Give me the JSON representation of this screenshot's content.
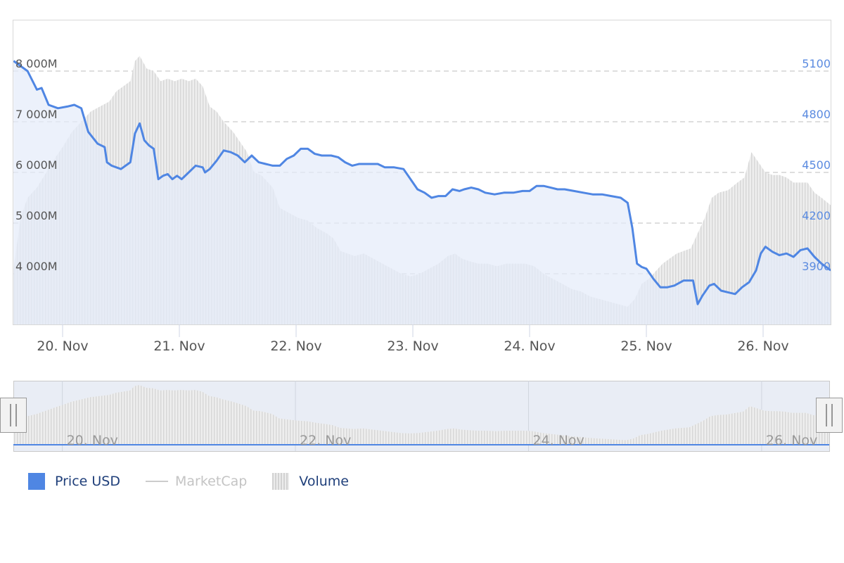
{
  "chart_data": {
    "type": "line",
    "x_ticks": [
      "20. Nov",
      "21. Nov",
      "22. Nov",
      "23. Nov",
      "24. Nov",
      "25. Nov",
      "26. Nov"
    ],
    "x_range_days": [
      19.58,
      26.58
    ],
    "y_left": {
      "ticks": [
        "4 000M",
        "5 000M",
        "6 000M",
        "7 000M",
        "8 000M"
      ],
      "tick_values": [
        4000,
        5000,
        6000,
        7000,
        8000
      ],
      "range": [
        3000,
        9000
      ]
    },
    "y_right": {
      "ticks": [
        "3900",
        "4200",
        "4500",
        "4800",
        "5100"
      ],
      "tick_values": [
        3900,
        4200,
        4500,
        4800,
        5100
      ],
      "range": [
        3600,
        5400
      ]
    },
    "grid": true,
    "legend_position": "bottom-left",
    "colors": {
      "price": "#4f86e3",
      "price_fill": "#e4ebf9",
      "marketcap": "#cccccc",
      "volume": "#e7e7e7",
      "volume_bar": "#d4d4d4"
    },
    "series": [
      {
        "name": "Price USD",
        "axis": "right",
        "type": "area",
        "points": [
          [
            19.58,
            5160
          ],
          [
            19.62,
            5140
          ],
          [
            19.7,
            5100
          ],
          [
            19.78,
            4990
          ],
          [
            19.82,
            5000
          ],
          [
            19.88,
            4900
          ],
          [
            19.96,
            4880
          ],
          [
            20.04,
            4890
          ],
          [
            20.1,
            4900
          ],
          [
            20.16,
            4880
          ],
          [
            20.22,
            4740
          ],
          [
            20.3,
            4670
          ],
          [
            20.36,
            4650
          ],
          [
            20.38,
            4560
          ],
          [
            20.42,
            4540
          ],
          [
            20.46,
            4530
          ],
          [
            20.5,
            4520
          ],
          [
            20.54,
            4540
          ],
          [
            20.58,
            4560
          ],
          [
            20.62,
            4730
          ],
          [
            20.66,
            4790
          ],
          [
            20.7,
            4690
          ],
          [
            20.74,
            4660
          ],
          [
            20.78,
            4640
          ],
          [
            20.82,
            4460
          ],
          [
            20.86,
            4480
          ],
          [
            20.9,
            4490
          ],
          [
            20.94,
            4460
          ],
          [
            20.98,
            4480
          ],
          [
            21.02,
            4460
          ],
          [
            21.08,
            4500
          ],
          [
            21.14,
            4540
          ],
          [
            21.2,
            4530
          ],
          [
            21.22,
            4500
          ],
          [
            21.26,
            4520
          ],
          [
            21.32,
            4570
          ],
          [
            21.38,
            4630
          ],
          [
            21.44,
            4620
          ],
          [
            21.5,
            4600
          ],
          [
            21.56,
            4560
          ],
          [
            21.62,
            4600
          ],
          [
            21.68,
            4560
          ],
          [
            21.74,
            4550
          ],
          [
            21.8,
            4540
          ],
          [
            21.86,
            4540
          ],
          [
            21.92,
            4580
          ],
          [
            21.98,
            4600
          ],
          [
            22.04,
            4640
          ],
          [
            22.1,
            4640
          ],
          [
            22.16,
            4610
          ],
          [
            22.22,
            4600
          ],
          [
            22.3,
            4600
          ],
          [
            22.36,
            4590
          ],
          [
            22.42,
            4560
          ],
          [
            22.48,
            4540
          ],
          [
            22.54,
            4550
          ],
          [
            22.62,
            4550
          ],
          [
            22.7,
            4550
          ],
          [
            22.76,
            4530
          ],
          [
            22.84,
            4530
          ],
          [
            22.92,
            4520
          ],
          [
            22.98,
            4460
          ],
          [
            23.04,
            4400
          ],
          [
            23.1,
            4380
          ],
          [
            23.16,
            4350
          ],
          [
            23.22,
            4360
          ],
          [
            23.28,
            4360
          ],
          [
            23.34,
            4400
          ],
          [
            23.4,
            4390
          ],
          [
            23.44,
            4400
          ],
          [
            23.5,
            4410
          ],
          [
            23.56,
            4400
          ],
          [
            23.62,
            4380
          ],
          [
            23.7,
            4370
          ],
          [
            23.78,
            4380
          ],
          [
            23.86,
            4380
          ],
          [
            23.94,
            4390
          ],
          [
            24.0,
            4390
          ],
          [
            24.06,
            4420
          ],
          [
            24.12,
            4420
          ],
          [
            24.18,
            4410
          ],
          [
            24.24,
            4400
          ],
          [
            24.3,
            4400
          ],
          [
            24.38,
            4390
          ],
          [
            24.46,
            4380
          ],
          [
            24.54,
            4370
          ],
          [
            24.62,
            4370
          ],
          [
            24.7,
            4360
          ],
          [
            24.78,
            4350
          ],
          [
            24.84,
            4320
          ],
          [
            24.88,
            4170
          ],
          [
            24.92,
            3960
          ],
          [
            24.96,
            3940
          ],
          [
            25.0,
            3930
          ],
          [
            25.06,
            3870
          ],
          [
            25.12,
            3820
          ],
          [
            25.18,
            3820
          ],
          [
            25.24,
            3830
          ],
          [
            25.32,
            3860
          ],
          [
            25.4,
            3860
          ],
          [
            25.44,
            3720
          ],
          [
            25.48,
            3770
          ],
          [
            25.54,
            3830
          ],
          [
            25.58,
            3840
          ],
          [
            25.64,
            3800
          ],
          [
            25.7,
            3790
          ],
          [
            25.76,
            3780
          ],
          [
            25.82,
            3820
          ],
          [
            25.88,
            3850
          ],
          [
            25.94,
            3920
          ],
          [
            25.98,
            4020
          ],
          [
            26.02,
            4060
          ],
          [
            26.08,
            4030
          ],
          [
            26.14,
            4010
          ],
          [
            26.2,
            4020
          ],
          [
            26.26,
            4000
          ],
          [
            26.32,
            4040
          ],
          [
            26.38,
            4050
          ],
          [
            26.44,
            4000
          ],
          [
            26.5,
            3960
          ],
          [
            26.58,
            3920
          ]
        ]
      },
      {
        "name": "MarketCap",
        "axis": "left",
        "type": "line",
        "hidden": true,
        "points": []
      },
      {
        "name": "Volume",
        "axis": "left",
        "type": "area",
        "points": [
          [
            19.58,
            4100
          ],
          [
            19.64,
            5100
          ],
          [
            19.7,
            5500
          ],
          [
            19.78,
            5700
          ],
          [
            19.86,
            6000
          ],
          [
            19.94,
            6300
          ],
          [
            20.0,
            6500
          ],
          [
            20.08,
            6800
          ],
          [
            20.16,
            7000
          ],
          [
            20.24,
            7200
          ],
          [
            20.32,
            7300
          ],
          [
            20.4,
            7400
          ],
          [
            20.46,
            7600
          ],
          [
            20.52,
            7700
          ],
          [
            20.58,
            7800
          ],
          [
            20.62,
            8200
          ],
          [
            20.66,
            8300
          ],
          [
            20.72,
            8050
          ],
          [
            20.78,
            8000
          ],
          [
            20.84,
            7800
          ],
          [
            20.9,
            7850
          ],
          [
            20.96,
            7800
          ],
          [
            21.02,
            7850
          ],
          [
            21.08,
            7800
          ],
          [
            21.14,
            7850
          ],
          [
            21.2,
            7700
          ],
          [
            21.26,
            7300
          ],
          [
            21.32,
            7200
          ],
          [
            21.38,
            7000
          ],
          [
            21.46,
            6800
          ],
          [
            21.52,
            6600
          ],
          [
            21.58,
            6400
          ],
          [
            21.64,
            6000
          ],
          [
            21.7,
            5950
          ],
          [
            21.76,
            5800
          ],
          [
            21.8,
            5700
          ],
          [
            21.86,
            5300
          ],
          [
            21.94,
            5200
          ],
          [
            22.02,
            5100
          ],
          [
            22.1,
            5050
          ],
          [
            22.18,
            4900
          ],
          [
            22.26,
            4800
          ],
          [
            22.32,
            4700
          ],
          [
            22.38,
            4450
          ],
          [
            22.44,
            4400
          ],
          [
            22.5,
            4350
          ],
          [
            22.58,
            4400
          ],
          [
            22.66,
            4300
          ],
          [
            22.74,
            4200
          ],
          [
            22.82,
            4100
          ],
          [
            22.9,
            4000
          ],
          [
            22.98,
            3950
          ],
          [
            23.06,
            4000
          ],
          [
            23.14,
            4100
          ],
          [
            23.22,
            4200
          ],
          [
            23.3,
            4350
          ],
          [
            23.36,
            4400
          ],
          [
            23.42,
            4300
          ],
          [
            23.48,
            4250
          ],
          [
            23.56,
            4200
          ],
          [
            23.64,
            4200
          ],
          [
            23.72,
            4150
          ],
          [
            23.8,
            4200
          ],
          [
            23.88,
            4200
          ],
          [
            23.96,
            4200
          ],
          [
            24.04,
            4150
          ],
          [
            24.12,
            4000
          ],
          [
            24.2,
            3900
          ],
          [
            24.28,
            3800
          ],
          [
            24.36,
            3700
          ],
          [
            24.44,
            3650
          ],
          [
            24.52,
            3550
          ],
          [
            24.6,
            3500
          ],
          [
            24.68,
            3450
          ],
          [
            24.76,
            3400
          ],
          [
            24.84,
            3350
          ],
          [
            24.9,
            3500
          ],
          [
            24.96,
            3800
          ],
          [
            25.02,
            3900
          ],
          [
            25.08,
            4050
          ],
          [
            25.14,
            4200
          ],
          [
            25.2,
            4300
          ],
          [
            25.26,
            4400
          ],
          [
            25.32,
            4450
          ],
          [
            25.38,
            4500
          ],
          [
            25.44,
            4800
          ],
          [
            25.5,
            5100
          ],
          [
            25.56,
            5500
          ],
          [
            25.62,
            5600
          ],
          [
            25.7,
            5650
          ],
          [
            25.78,
            5800
          ],
          [
            25.84,
            5900
          ],
          [
            25.9,
            6400
          ],
          [
            25.96,
            6200
          ],
          [
            26.02,
            6000
          ],
          [
            26.08,
            5950
          ],
          [
            26.14,
            5950
          ],
          [
            26.2,
            5900
          ],
          [
            26.26,
            5800
          ],
          [
            26.32,
            5800
          ],
          [
            26.38,
            5800
          ],
          [
            26.44,
            5600
          ],
          [
            26.5,
            5500
          ],
          [
            26.58,
            5350
          ]
        ]
      }
    ]
  },
  "navigator": {
    "x_labels": [
      "20. Nov",
      "22. Nov",
      "24. Nov",
      "26. Nov"
    ]
  },
  "legend": {
    "items": [
      {
        "label": "Price USD",
        "color": "#4f86e3",
        "text_color": "#1f3f7a"
      },
      {
        "label": "MarketCap",
        "color": "#cccccc",
        "text_color": "#c4c4c4"
      },
      {
        "label": "Volume",
        "color": "#dddddd",
        "text_color": "#1f3f7a"
      }
    ]
  }
}
